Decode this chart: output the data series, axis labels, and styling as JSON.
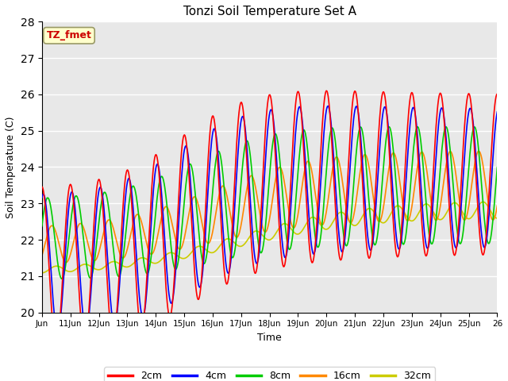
{
  "title": "Tonzi Soil Temperature Set A",
  "xlabel": "Time",
  "ylabel": "Soil Temperature (C)",
  "ylim": [
    20.0,
    28.0
  ],
  "yticks": [
    20.0,
    21.0,
    22.0,
    23.0,
    24.0,
    25.0,
    26.0,
    27.0,
    28.0
  ],
  "num_days": 16,
  "points_per_day": 48,
  "colors": {
    "2cm": "#ff0000",
    "4cm": "#0000ff",
    "8cm": "#00cc00",
    "16cm": "#ff8800",
    "32cm": "#cccc00"
  },
  "bg_color": "#e8e8e8",
  "annotation_text": "TZ_fmet",
  "annotation_color": "#cc0000",
  "annotation_bg": "#ffffcc"
}
